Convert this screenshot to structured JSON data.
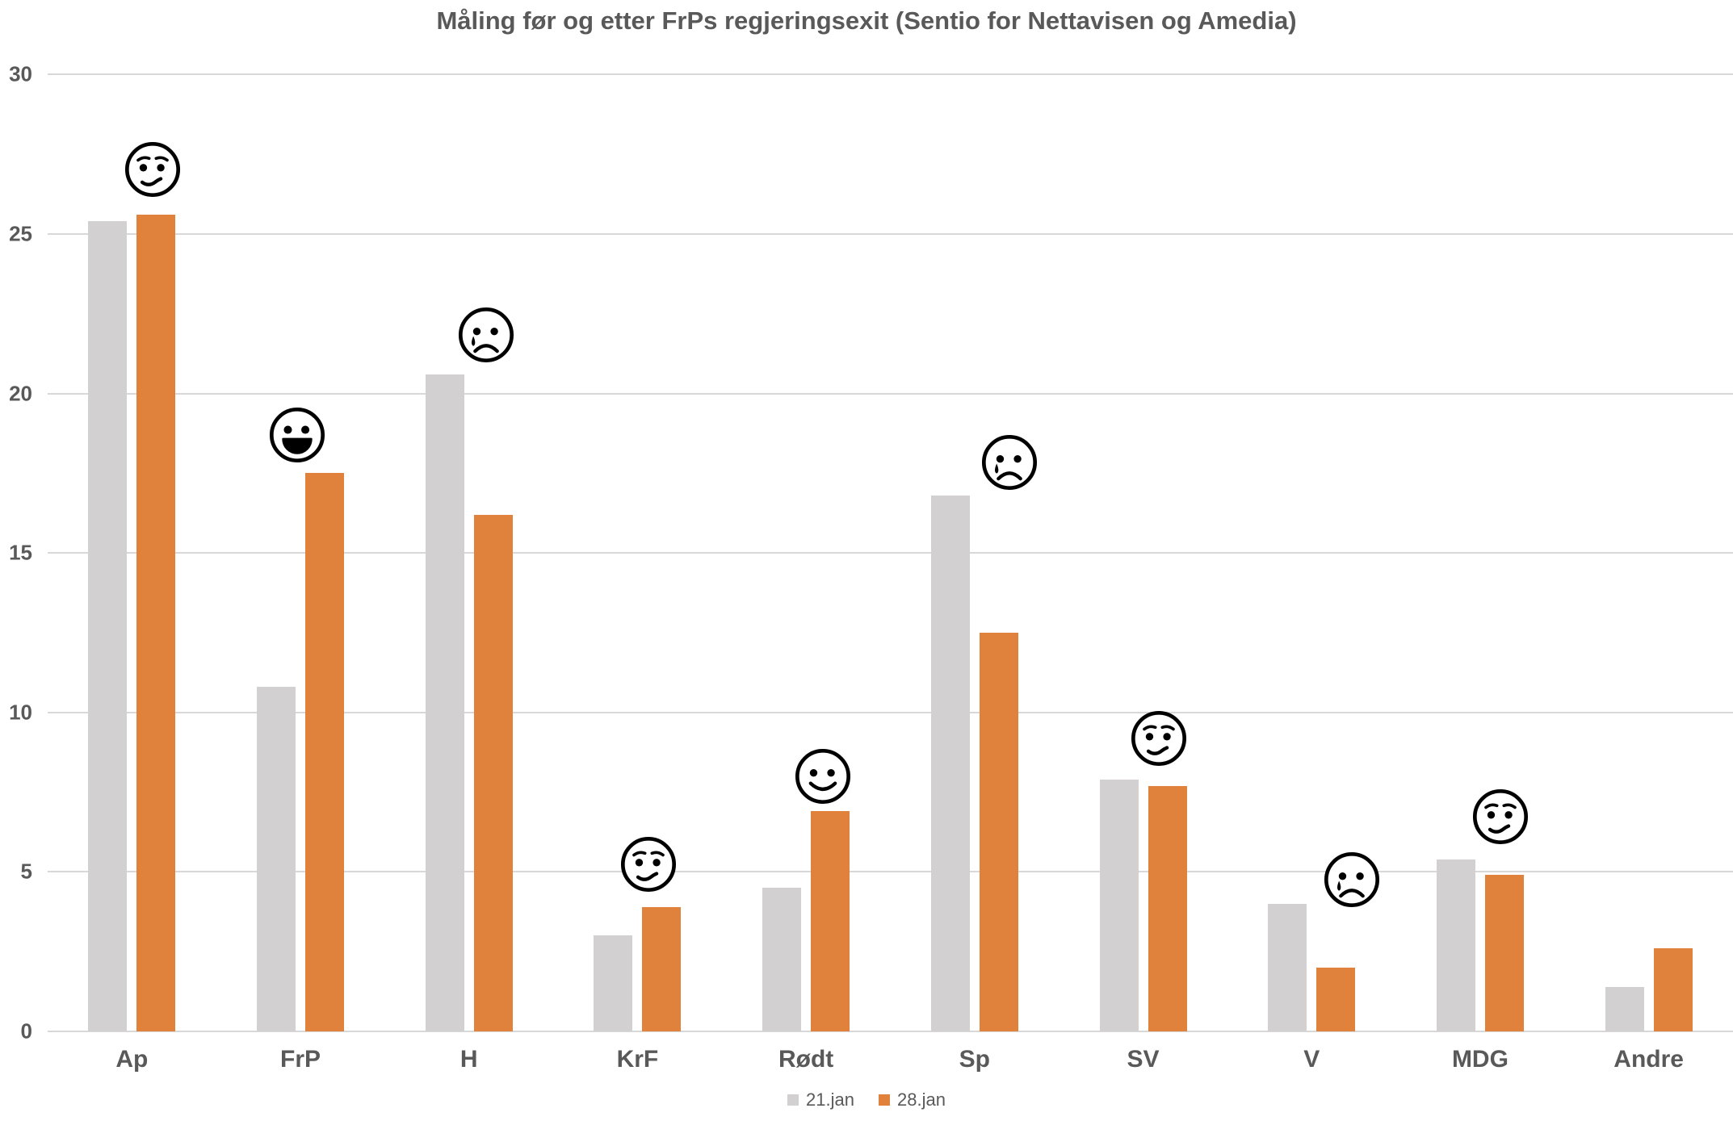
{
  "title": "Måling før og etter FrPs regjeringsexit (Sentio for Nettavisen og Amedia)",
  "legend": [
    {
      "label": "21.jan",
      "color": "#D2D0D0"
    },
    {
      "label": "28.jan",
      "color": "#E0813C"
    }
  ],
  "chart_data": {
    "type": "bar",
    "title": "Måling før og etter FrPs regjeringsexit (Sentio for Nettavisen og Amedia)",
    "categories": [
      "Ap",
      "FrP",
      "H",
      "KrF",
      "Rødt",
      "Sp",
      "SV",
      "V",
      "MDG",
      "Andre"
    ],
    "series": [
      {
        "name": "21.jan",
        "color": "#D2D0D0",
        "values": [
          25.4,
          10.8,
          20.6,
          3.0,
          4.5,
          16.8,
          7.9,
          4.0,
          5.4,
          1.4
        ]
      },
      {
        "name": "28.jan",
        "color": "#E0813C",
        "values": [
          25.6,
          17.5,
          16.2,
          3.9,
          6.9,
          12.5,
          7.7,
          2.0,
          4.9,
          2.6
        ]
      }
    ],
    "xlabel": "",
    "ylabel": "",
    "ylim": [
      0,
      30
    ],
    "yticks": [
      0,
      5,
      10,
      15,
      20,
      25,
      30
    ],
    "grid": true,
    "legend_position": "bottom",
    "annotations": [
      {
        "category": "Ap",
        "mood": "unsure"
      },
      {
        "category": "FrP",
        "mood": "grin"
      },
      {
        "category": "H",
        "mood": "cry"
      },
      {
        "category": "KrF",
        "mood": "unsure"
      },
      {
        "category": "Rødt",
        "mood": "smile"
      },
      {
        "category": "Sp",
        "mood": "cry"
      },
      {
        "category": "SV",
        "mood": "unsure"
      },
      {
        "category": "V",
        "mood": "cry"
      },
      {
        "category": "MDG",
        "mood": "unsure"
      },
      {
        "category": "Andre",
        "mood": null
      }
    ],
    "colors": {
      "gridline": "#D8D8D8",
      "text": "#595959"
    }
  }
}
